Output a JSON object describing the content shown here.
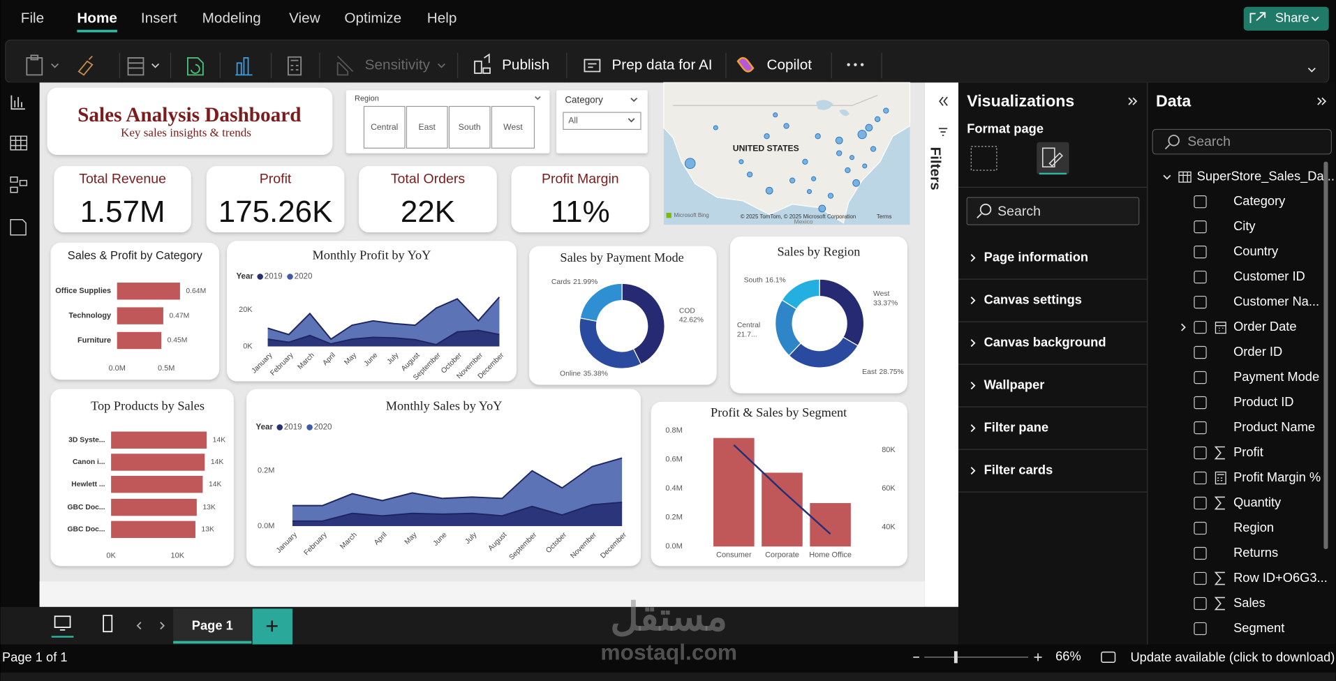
{
  "menu": {
    "items": [
      "File",
      "Home",
      "Insert",
      "Modeling",
      "View",
      "Optimize",
      "Help"
    ],
    "active": 1
  },
  "share": "Share",
  "ribbon": {
    "sensitivity": "Sensitivity",
    "publish": "Publish",
    "prep_data": "Prep data for AI",
    "copilot": "Copilot"
  },
  "report": {
    "title": "Sales Analysis Dashboard",
    "subtitle": "Key sales insights & trends",
    "region_slicer": {
      "label": "Region",
      "options": [
        "Central",
        "East",
        "South",
        "West"
      ]
    },
    "category_slicer": {
      "label": "Category",
      "selected": "All"
    },
    "map": {
      "country_label": "UNITED STATES",
      "neighbor_label": "Mexico",
      "attribution": "© 2025 TomTom, © 2025 Microsoft Corporation",
      "terms": "Terms",
      "provider": "Microsoft Bing"
    },
    "kpis": [
      {
        "label": "Total Revenue",
        "value": "1.57M"
      },
      {
        "label": "Profit",
        "value": "175.26K"
      },
      {
        "label": "Total Orders",
        "value": "22K"
      },
      {
        "label": "Profit Margin",
        "value": "11%"
      }
    ],
    "charts": [
      {
        "type": "hbar",
        "title": "Sales & Profit by Category",
        "categories": [
          "Office Supplies",
          "Technology",
          "Furniture"
        ],
        "values": [
          0.64,
          0.47,
          0.45
        ],
        "value_labels": [
          "0.64M",
          "0.47M",
          "0.45M"
        ],
        "color": "#c0585a",
        "xlim": [
          0,
          0.9
        ],
        "xticks": [
          {
            "value": 0,
            "label": "0.0M"
          },
          {
            "value": 0.5,
            "label": "0.5M"
          }
        ]
      },
      {
        "type": "area",
        "title": "Monthly Profit by YoY",
        "legend_title": "Year",
        "categories": [
          "January",
          "February",
          "March",
          "April",
          "May",
          "June",
          "July",
          "August",
          "September",
          "October",
          "November",
          "December"
        ],
        "series": [
          {
            "name": "2019",
            "color": "#252f73",
            "values": [
              4,
              2.3,
              6,
              1.4,
              4,
              5,
              4.7,
              3.7,
              1,
              8,
              8.8,
              6.5
            ]
          },
          {
            "name": "2020",
            "color": "#3f5aa8",
            "values": [
              10,
              6.5,
              18,
              4,
              11.6,
              14,
              12.5,
              11.6,
              21,
              26,
              14,
              27
            ]
          }
        ],
        "ylim": [
          0,
          30
        ],
        "yticks": [
          {
            "value": 0,
            "label": "0K"
          },
          {
            "value": 20,
            "label": "20K"
          }
        ]
      },
      {
        "type": "donut",
        "title": "Sales by Payment Mode",
        "categories": [
          "COD",
          "Online",
          "Cards"
        ],
        "values": [
          42.62,
          35.38,
          21.99
        ],
        "value_labels": [
          "42.62%",
          "35.38%",
          "21.99%"
        ],
        "colors": [
          "#252a72",
          "#2a4aa0",
          "#2f8fd3"
        ]
      },
      {
        "type": "donut",
        "title": "Sales by Region",
        "categories": [
          "West",
          "East",
          "Central",
          "South"
        ],
        "values": [
          33.37,
          28.75,
          21.78,
          16.1
        ],
        "value_labels": [
          "33.37%",
          "28.75%",
          "21.7...",
          "16.1%"
        ],
        "colors": [
          "#252a72",
          "#2a4aa0",
          "#2e86c9",
          "#23b0e0"
        ]
      },
      {
        "type": "hbar",
        "title": "Top Products by Sales",
        "categories": [
          "3D Syste...",
          "Canon i...",
          "Hewlett ...",
          "GBC Doc...",
          "GBC Doc..."
        ],
        "values": [
          14.4,
          14.1,
          13.8,
          12.9,
          12.7
        ],
        "value_labels": [
          "14K",
          "14K",
          "14K",
          "13K",
          "13K"
        ],
        "color": "#c0585a",
        "xlim": [
          0,
          15
        ],
        "xticks": [
          {
            "value": 0,
            "label": "0K"
          },
          {
            "value": 10,
            "label": "10K"
          }
        ]
      },
      {
        "type": "area",
        "title": "Monthly Sales by YoY",
        "legend_title": "Year",
        "categories": [
          "January",
          "February",
          "March",
          "April",
          "May",
          "June",
          "July",
          "August",
          "September",
          "October",
          "November",
          "December"
        ],
        "series": [
          {
            "name": "2019",
            "color": "#252f73",
            "values": [
              0.018,
              0.018,
              0.046,
              0.037,
              0.046,
              0.043,
              0.046,
              0.037,
              0.071,
              0.04,
              0.077,
              0.086
            ]
          },
          {
            "name": "2020",
            "color": "#3f5aa8",
            "values": [
              0.074,
              0.074,
              0.117,
              0.092,
              0.12,
              0.1,
              0.105,
              0.1,
              0.2,
              0.138,
              0.215,
              0.246
            ]
          }
        ],
        "ylim": [
          0,
          0.3
        ],
        "yticks": [
          {
            "value": 0,
            "label": "0.0M"
          },
          {
            "value": 0.2,
            "label": "0.2M"
          }
        ]
      },
      {
        "type": "combo",
        "title": "Profit & Sales by Segment",
        "categories": [
          "Consumer",
          "Corporate",
          "Home Office"
        ],
        "series": [
          {
            "type": "bar",
            "color": "#c0585a",
            "values": [
              0.75,
              0.51,
              0.3
            ]
          },
          {
            "type": "line",
            "axis": "y2",
            "color": "#252f73",
            "values": [
              82.6,
              59,
              36.5
            ]
          }
        ],
        "ylim": [
          0,
          0.8
        ],
        "yticks": [
          {
            "value": 0,
            "label": "0.0M"
          },
          {
            "value": 0.2,
            "label": "0.2M"
          },
          {
            "value": 0.4,
            "label": "0.4M"
          },
          {
            "value": 0.6,
            "label": "0.6M"
          },
          {
            "value": 0.8,
            "label": "0.8M"
          }
        ],
        "y2lim": [
          30,
          90
        ],
        "y2ticks": [
          {
            "value": 40,
            "label": "40K"
          },
          {
            "value": 60,
            "label": "60K"
          },
          {
            "value": 80,
            "label": "80K"
          }
        ]
      }
    ]
  },
  "filters": "Filters",
  "visualizations": {
    "title": "Visualizations",
    "subtitle": "Format page",
    "search": "Search",
    "sections": [
      "Page information",
      "Canvas settings",
      "Canvas background",
      "Wallpaper",
      "Filter pane",
      "Filter cards"
    ]
  },
  "data_pane": {
    "title": "Data",
    "search": "Search",
    "table": "SuperStore_Sales_Da...",
    "fields": [
      {
        "name": "Category"
      },
      {
        "name": "City"
      },
      {
        "name": "Country"
      },
      {
        "name": "Customer ID"
      },
      {
        "name": "Customer Na..."
      },
      {
        "name": "Order Date",
        "icon": "calendar",
        "expandable": true
      },
      {
        "name": "Order ID"
      },
      {
        "name": "Payment Mode"
      },
      {
        "name": "Product ID"
      },
      {
        "name": "Product Name"
      },
      {
        "name": "Profit",
        "icon": "sum"
      },
      {
        "name": "Profit Margin %",
        "icon": "calc"
      },
      {
        "name": "Quantity",
        "icon": "sum"
      },
      {
        "name": "Region"
      },
      {
        "name": "Returns"
      },
      {
        "name": "Row ID+O6G3...",
        "icon": "sum"
      },
      {
        "name": "Sales",
        "icon": "sum"
      },
      {
        "name": "Segment"
      }
    ]
  },
  "page_tabs": {
    "pages": [
      "Page 1"
    ]
  },
  "status_bar": {
    "page_info": "Page 1 of 1",
    "zoom": "66%",
    "update": "Update available (click to download)"
  },
  "watermark": {
    "arabic": "مستقل",
    "latin": "mostaql.com"
  }
}
